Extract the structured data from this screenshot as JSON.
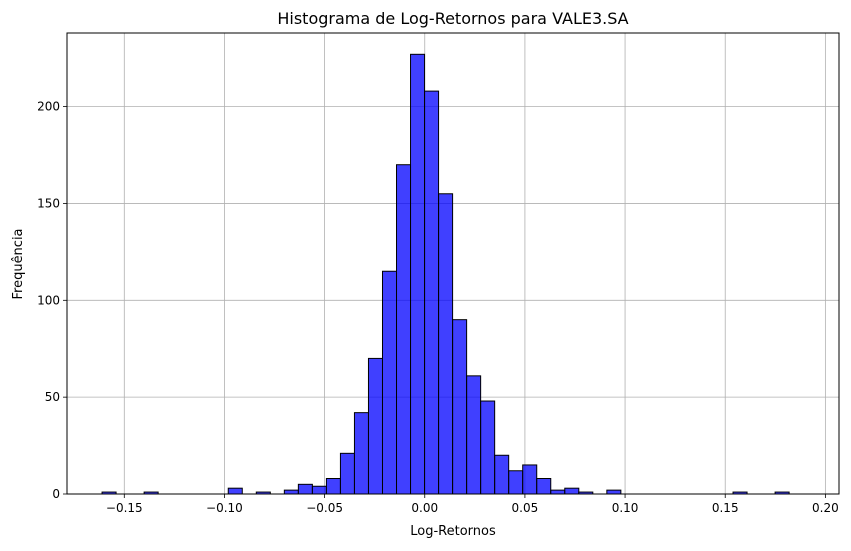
{
  "chart_data": {
    "type": "bar",
    "title": "Histograma de Log-Retornos para VALE3.SA",
    "xlabel": "Log-Retornos",
    "ylabel": "Frequência",
    "bar_color": "#0000ff",
    "bar_edge_color": "#000000",
    "grid": true,
    "xlim": [
      -0.1786,
      0.2068
    ],
    "ylim": [
      0,
      238
    ],
    "x_ticks": [
      -0.15,
      -0.1,
      -0.05,
      0.0,
      0.05,
      0.1,
      0.15,
      0.2
    ],
    "x_tick_labels": [
      "−0.15",
      "−0.10",
      "−0.05",
      "0.00",
      "0.05",
      "0.10",
      "0.15",
      "0.20"
    ],
    "y_ticks": [
      0,
      50,
      100,
      150,
      200
    ],
    "y_tick_labels": [
      "0",
      "50",
      "100",
      "150",
      "200"
    ],
    "bin_start": -0.1611,
    "bin_width": 0.007,
    "counts": [
      1,
      0,
      0,
      1,
      0,
      0,
      0,
      0,
      0,
      3,
      0,
      1,
      0,
      2,
      5,
      4,
      8,
      21,
      42,
      70,
      115,
      170,
      227,
      208,
      155,
      90,
      61,
      48,
      20,
      12,
      15,
      8,
      2,
      3,
      1,
      0,
      2,
      0,
      0,
      0,
      0,
      0,
      0,
      0,
      0,
      1,
      0,
      0,
      1
    ]
  }
}
